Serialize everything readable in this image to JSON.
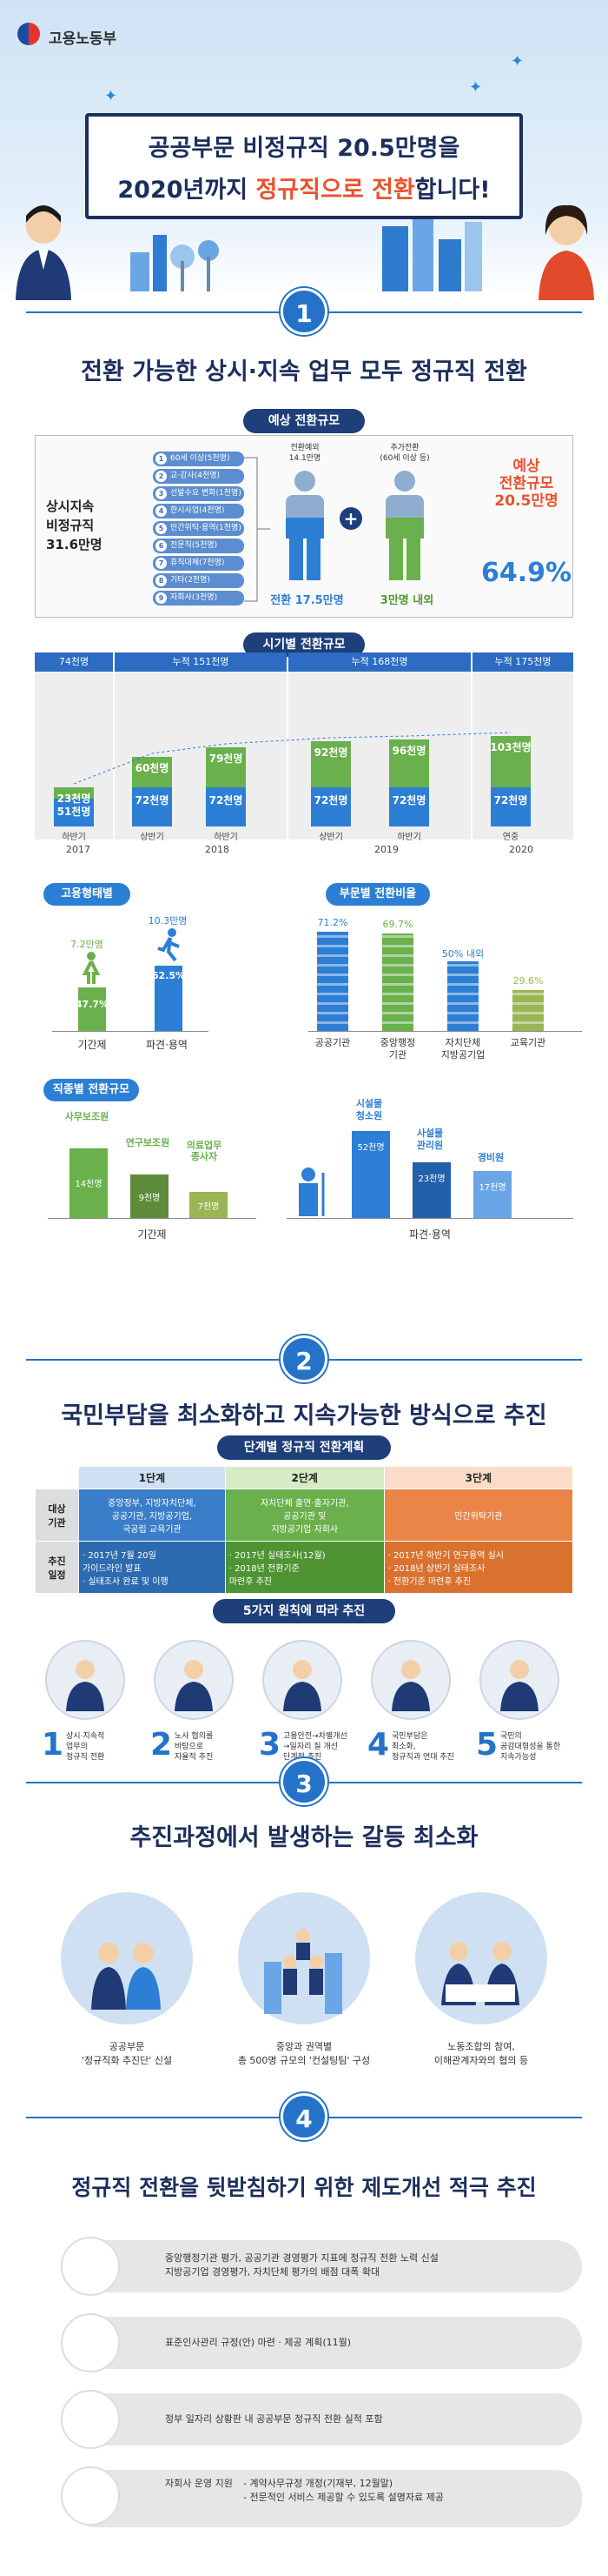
{
  "header": {
    "logo": "고용노동부",
    "title_line1": "공공부문 비정규직 20.5만명을",
    "title_line2_pre": "2020년까지 ",
    "title_line2_hl": "정규직으로 전환",
    "title_line2_post": "합니다!"
  },
  "sec1": {
    "num": "1",
    "title": "전환 가능한 상시·지속 업무 모두 정규직 전환",
    "pill": "예상 전환규모",
    "left_label_1": "상시지속",
    "left_label_2": "비정규직",
    "left_label_3": "31.6만명",
    "categories": [
      "60세 이상(5천명)",
      "교·강사(4천명)",
      "선발수요 변화(1천명)",
      "한시사업(4천명)",
      "민간위탁·용역(1천명)",
      "전문직(5천명)",
      "휴직대체(7천명)",
      "기타(2천명)",
      "자회사(3천명)"
    ],
    "fig1_top_1": "전환예외",
    "fig1_top_2": "14.1만명",
    "fig2_top_1": "추가전환",
    "fig2_top_2": "(60세 이상 등)",
    "fig1_bottom": "전환 17.5만명",
    "fig2_bottom": "3만명 내외",
    "plus": "+",
    "right_1": "예상",
    "right_2": "전환규모",
    "right_3": "20.5만명",
    "right_pct": "64.9%",
    "timeline_pill": "시기별 전환규모",
    "timeline_groups": [
      "74천명",
      "누적 151천명",
      "누적 168천명",
      "누적 175천명"
    ],
    "timeline_bars": [
      {
        "top": "23천명",
        "bottom": "51천명",
        "period": "하반기",
        "top_val": 23,
        "bottom_val": 51
      },
      {
        "top": "60천명",
        "bottom": "72천명",
        "period": "상반기",
        "top_val": 60,
        "bottom_val": 72
      },
      {
        "top": "79천명",
        "bottom": "72천명",
        "period": "하반기",
        "top_val": 79,
        "bottom_val": 72
      },
      {
        "top": "92천명",
        "bottom": "72천명",
        "period": "상반기",
        "top_val": 92,
        "bottom_val": 72
      },
      {
        "top": "96천명",
        "bottom": "72천명",
        "period": "하반기",
        "top_val": 96,
        "bottom_val": 72
      },
      {
        "top": "103천명",
        "bottom": "72천명",
        "period": "연중",
        "top_val": 103,
        "bottom_val": 72
      }
    ],
    "years": [
      "2017",
      "2018",
      "2019",
      "2020"
    ],
    "employment_head": "고용형태별",
    "emp_items": [
      {
        "val": "7.2만명",
        "pct": "47.7%",
        "label": "기간제"
      },
      {
        "val": "10.3만명",
        "pct": "62.5%",
        "label": "파견·용역"
      }
    ],
    "ratio_head": "부문별 전환비율",
    "ratio_items": [
      {
        "pct": "71.2%",
        "label1": "공공기관",
        "label2": "",
        "value": 71.2
      },
      {
        "pct": "69.7%",
        "label1": "중앙행정",
        "label2": "기관",
        "value": 69.7
      },
      {
        "pct": "50% 내외",
        "label1": "자치단체",
        "label2": "지방공기업",
        "value": 50
      },
      {
        "pct": "29.6%",
        "label1": "교육기관",
        "label2": "",
        "value": 29.6
      }
    ],
    "job_head": "직종별 전환규모",
    "job_left": [
      {
        "name": "사무보조원",
        "val": "14천명"
      },
      {
        "name": "연구보조원",
        "val": "9천명"
      },
      {
        "name1": "의료업무",
        "name2": "종사자",
        "val": "7천명"
      }
    ],
    "job_left_label": "기간제",
    "job_right": [
      {
        "name1": "시설물",
        "name2": "청소원",
        "val": "52천명"
      },
      {
        "name1": "사설물",
        "name2": "관리원",
        "val": "23천명"
      },
      {
        "name1": "경비원",
        "name2": "",
        "val": "17천명"
      }
    ],
    "job_right_label": "파견·용역"
  },
  "sec2": {
    "num": "2",
    "title": "국민부담을 최소화하고 지속가능한 방식으로 추진",
    "pill": "단계별 정규직 전환계획",
    "stages": [
      "1단계",
      "2단계",
      "3단계"
    ],
    "row1_head_1": "대상",
    "row1_head_2": "기관",
    "row1": [
      [
        "중앙정부, 지방자치단체,",
        "공공기관, 지방공기업,",
        "국공립 교육기관"
      ],
      [
        "자치단체 출연·출자기관,",
        "공공기관 및",
        "지방공기업 자회사"
      ],
      [
        "민간위탁기관"
      ]
    ],
    "row2_head_1": "추진",
    "row2_head_2": "일정",
    "row2": [
      [
        "· 2017년 7월 20일",
        "  가이드라인 발표",
        "· 실태조사 완료 및 이행"
      ],
      [
        "· 2017년 실태조사(12월)",
        "· 2018년 전환기준",
        "  마련후 추진"
      ],
      [
        "· 2017년 하반기 연구용역 실시",
        "· 2018년 상반기 실태조사",
        "· 전환기준 마련후 추진"
      ]
    ],
    "principles_pill": "5가지 원칙에 따라 추진",
    "principles": [
      {
        "num": "1",
        "l1": "상시·지속적",
        "l2": "업무의",
        "l3": "정규직 전환"
      },
      {
        "num": "2",
        "l1": "노사 협의를",
        "l2": "바탕으로",
        "l3": "자율적 추진"
      },
      {
        "num": "3",
        "l1": "고용안전→차별개선",
        "l2": "→일자리 질 개선",
        "l3": "단계적 추진"
      },
      {
        "num": "4",
        "l1": "국민부담은",
        "l2": "최소화,",
        "l3": "정규직과 연대 추진"
      },
      {
        "num": "5",
        "l1": "국민의",
        "l2": "공감대형성을 통한",
        "l3": "지속가능성"
      }
    ]
  },
  "sec3": {
    "num": "3",
    "title": "추진과정에서 발생하는 갈등 최소화",
    "items": [
      {
        "l1": "공공부문",
        "l2": "'정규직화 추진단' 신설"
      },
      {
        "l1": "중앙과 권역별",
        "l2": "총 500명 규모의 '컨설팅팀' 구성"
      },
      {
        "l1": "노동조합의 참여,",
        "l2": "이해관계자와의 협의 등"
      }
    ]
  },
  "sec4": {
    "num": "4",
    "title": "정규직 전환을 뒷받침하기 위한 제도개선 적극 추진",
    "rows": [
      {
        "l1": "중앙행정기관 평가, 공공기관 경영평가 지표에 정규직 전환 노력 신설",
        "l2": "지방공기업 경영평가, 자치단체 평가의 배점 대폭 확대",
        "l3": ""
      },
      {
        "l1": "표준인사관리 규정(안) 마련 · 제공 계획(11월)",
        "l2": "",
        "l3": ""
      },
      {
        "l1": "정부 일자리 상황판 내 공공부문 정규직 전환 실적 포함",
        "l2": "",
        "l3": ""
      },
      {
        "l1": "자회사 운영 지원",
        "l2": "- 계약사무규정 개정(기재부, 12월말)",
        "l3": "- 전문적인 서비스 제공할 수 있도록 설명자료 제공"
      }
    ]
  }
}
